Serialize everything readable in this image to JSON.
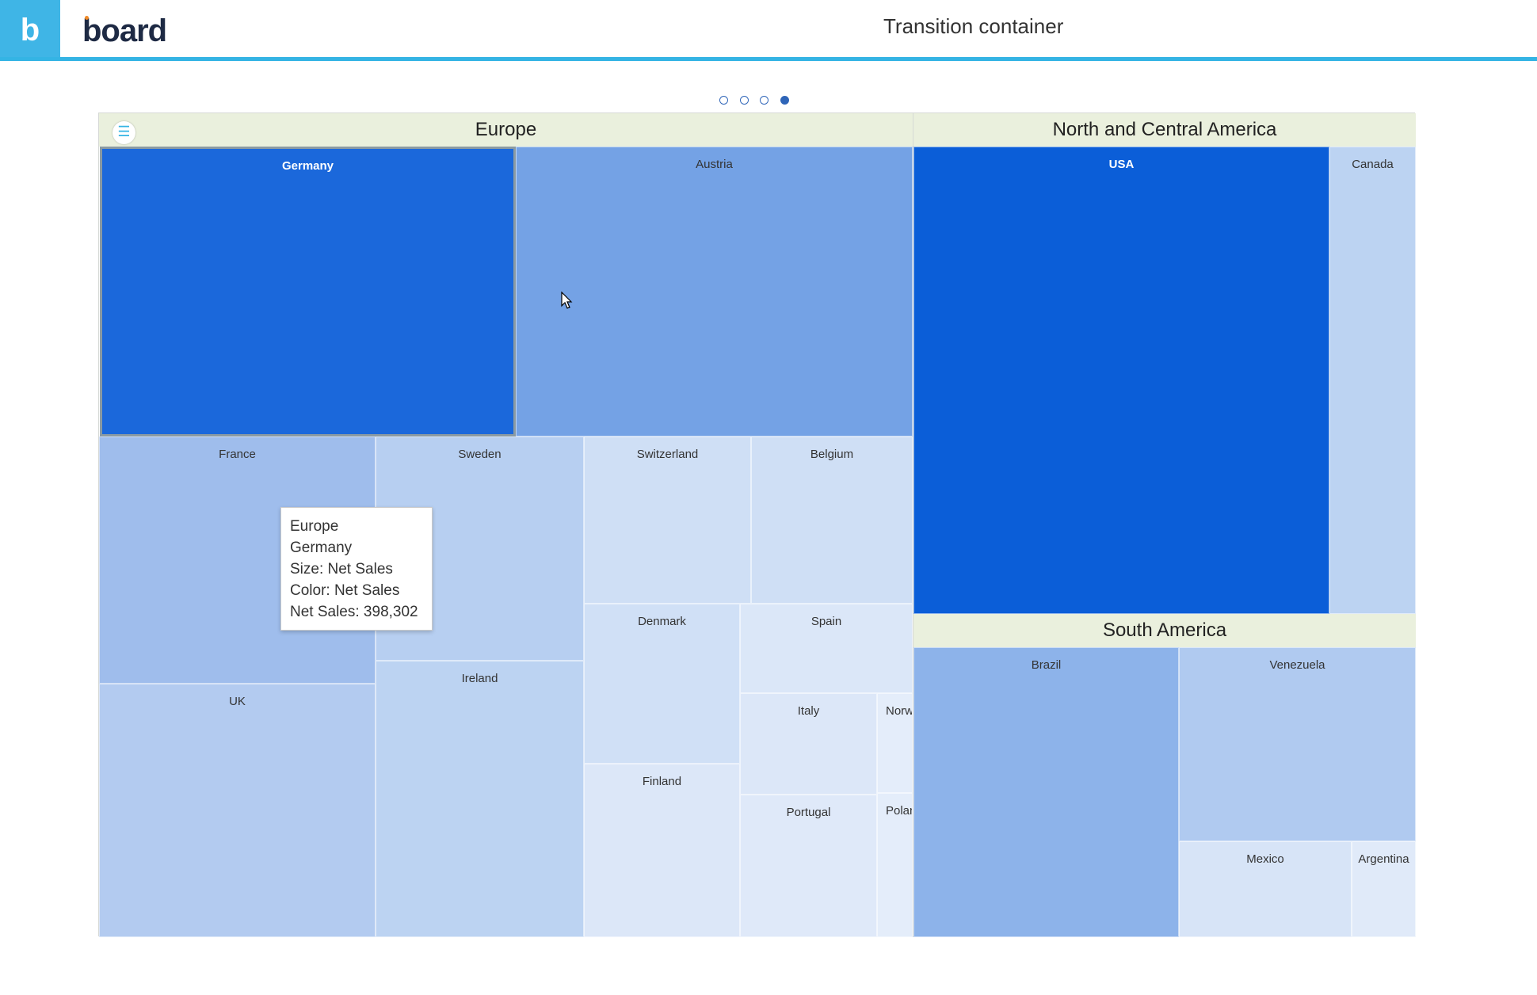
{
  "header": {
    "logo_glyph": "b",
    "brand": "board",
    "title": "Transition container"
  },
  "pager": {
    "count": 4,
    "active_index": 3
  },
  "menu_icon_glyph": "☰",
  "chart_data": {
    "type": "treemap",
    "size_measure": "Net Sales",
    "color_measure": "Net Sales",
    "groups": [
      {
        "name": "Europe",
        "items": [
          {
            "name": "Germany",
            "color": "#1b68db"
          },
          {
            "name": "Austria",
            "color": "#74a2e5"
          },
          {
            "name": "France",
            "color": "#9fbdec"
          },
          {
            "name": "Sweden",
            "color": "#b7cff1"
          },
          {
            "name": "Switzerland",
            "color": "#cfdff5"
          },
          {
            "name": "Belgium",
            "color": "#cfdff5"
          },
          {
            "name": "UK",
            "color": "#b3cbf0"
          },
          {
            "name": "Ireland",
            "color": "#bcd3f2"
          },
          {
            "name": "Denmark",
            "color": "#d0e0f6"
          },
          {
            "name": "Spain",
            "color": "#dbe7f8"
          },
          {
            "name": "Italy",
            "color": "#dce7f8"
          },
          {
            "name": "Norwa",
            "color": "#e4edfa"
          },
          {
            "name": "Finland",
            "color": "#dce7f8"
          },
          {
            "name": "Portugal",
            "color": "#dfe9f9"
          },
          {
            "name": "Polan",
            "color": "#e4edfa"
          }
        ]
      },
      {
        "name": "North and Central America",
        "items": [
          {
            "name": "USA",
            "color": "#0b5ed8"
          },
          {
            "name": "Canada",
            "color": "#bcd3f2"
          }
        ]
      },
      {
        "name": "South America",
        "items": [
          {
            "name": "Brazil",
            "color": "#8db3ea"
          },
          {
            "name": "Venezuela",
            "color": "#b0caf0"
          },
          {
            "name": "Mexico",
            "color": "#d7e4f7"
          },
          {
            "name": "Argentina",
            "color": "#e0eaf9"
          }
        ]
      }
    ],
    "tooltip": {
      "lines": [
        "Europe",
        "Germany",
        "Size: Net Sales",
        "Color: Net Sales",
        "Net Sales: 398,302"
      ],
      "group": "Europe",
      "item": "Germany",
      "net_sales": 398302
    }
  }
}
